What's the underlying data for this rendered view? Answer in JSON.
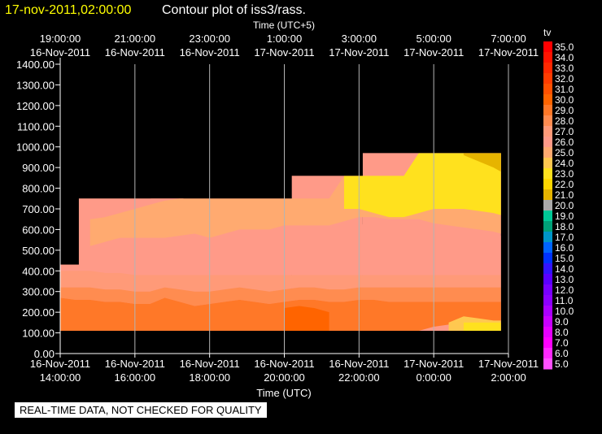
{
  "header": {
    "timestamp": "17-nov-2011,02:00:00",
    "title": "Contour plot of iss3/rass.",
    "timestamp_color": "#ffff00",
    "title_color": "#ffffff"
  },
  "footer": {
    "banner": "REAL-TIME DATA, NOT CHECKED FOR QUALITY"
  },
  "chart_data": {
    "type": "heatmap",
    "title": "Contour plot of iss3/rass.",
    "top_axis": {
      "label": "Time (UTC+5)",
      "ticks": [
        {
          "time": "19:00:00",
          "date": "16-Nov-2011"
        },
        {
          "time": "21:00:00",
          "date": "16-Nov-2011"
        },
        {
          "time": "23:00:00",
          "date": "16-Nov-2011"
        },
        {
          "time": "1:00:00",
          "date": "17-Nov-2011"
        },
        {
          "time": "3:00:00",
          "date": "17-Nov-2011"
        },
        {
          "time": "5:00:00",
          "date": "17-Nov-2011"
        },
        {
          "time": "7:00:00",
          "date": "17-Nov-2011"
        }
      ]
    },
    "bottom_axis": {
      "label": "Time (UTC)",
      "ticks": [
        {
          "time": "14:00:00",
          "date": "16-Nov-2011"
        },
        {
          "time": "16:00:00",
          "date": "16-Nov-2011"
        },
        {
          "time": "18:00:00",
          "date": "16-Nov-2011"
        },
        {
          "time": "20:00:00",
          "date": "16-Nov-2011"
        },
        {
          "time": "22:00:00",
          "date": "16-Nov-2011"
        },
        {
          "time": "0:00:00",
          "date": "17-Nov-2011"
        },
        {
          "time": "2:00:00",
          "date": "17-Nov-2011"
        }
      ]
    },
    "x_range_hours_utc": [
      14,
      26
    ],
    "y_axis": {
      "ticks": [
        "1400.00",
        "1300.00",
        "1200.00",
        "1100.00",
        "1000.00",
        "900.00",
        "800.00",
        "700.00",
        "600.00",
        "500.00",
        "400.00",
        "300.00",
        "200.00",
        "100.00",
        "0.00"
      ],
      "ylim": [
        0,
        1400
      ]
    },
    "legend": {
      "title": "tv",
      "levels": [
        "35.0",
        "34.0",
        "33.0",
        "32.0",
        "31.0",
        "30.0",
        "29.0",
        "28.0",
        "27.0",
        "26.0",
        "25.0",
        "24.0",
        "23.0",
        "22.0",
        "21.0",
        "20.0",
        "19.0",
        "18.0",
        "17.0",
        "16.0",
        "15.0",
        "14.0",
        "13.0",
        "12.0",
        "11.0",
        "10.0",
        "9.0",
        "8.0",
        "7.0",
        "6.0",
        "5.0"
      ],
      "colors": [
        "#ff0000",
        "#ff1400",
        "#ff2800",
        "#ff3c00",
        "#ff5000",
        "#ff6400",
        "#ff7828",
        "#ff8c50",
        "#ff9a78",
        "#ff9a88",
        "#ffaa70",
        "#ffc850",
        "#ffe11e",
        "#ffd700",
        "#e6b400",
        "#aaaaaa",
        "#00c896",
        "#00a078",
        "#0096c8",
        "#0064ff",
        "#0032ff",
        "#3214ff",
        "#5a00ff",
        "#7800ff",
        "#8c00ff",
        "#aa00ff",
        "#c800ff",
        "#e600ff",
        "#ff00ff",
        "#ff28ff",
        "#ff50ff"
      ]
    },
    "coverage_top_m": [
      {
        "x_hours": [
          14.0,
          14.5
        ],
        "top": 430
      },
      {
        "x_hours": [
          14.5,
          20.2
        ],
        "top": 750
      },
      {
        "x_hours": [
          20.2,
          22.1
        ],
        "top": 860
      },
      {
        "x_hours": [
          22.1,
          25.8
        ],
        "top": 970
      }
    ],
    "data_floor_m": 110,
    "bands": [
      {
        "color": "#ff9a88",
        "label": "26",
        "top": [
          430,
          750,
          750,
          750,
          750,
          750,
          750,
          760,
          760,
          720,
          700,
          700,
          680,
          650,
          650,
          650,
          650,
          640,
          620,
          600,
          620,
          640,
          640,
          650,
          650,
          650,
          640,
          620,
          600,
          580,
          570
        ],
        "bottom": [
          400,
          400,
          400,
          390,
          390,
          380,
          380,
          380,
          380,
          380,
          380,
          380,
          380,
          380,
          380,
          380,
          380,
          380,
          380,
          380,
          380,
          380,
          380,
          380,
          380,
          380,
          380,
          380,
          380,
          380,
          380
        ]
      },
      {
        "color": "#ffaa70",
        "label": "25",
        "top": [
          0,
          0,
          650,
          660,
          680,
          700,
          720,
          740,
          750,
          750,
          750,
          750,
          750,
          750,
          750,
          750,
          750,
          750,
          750,
          860,
          860,
          860,
          860,
          860,
          970,
          970,
          970,
          970,
          970,
          970,
          970
        ],
        "bottom": [
          0,
          0,
          520,
          540,
          560,
          560,
          560,
          560,
          570,
          580,
          560,
          580,
          600,
          600,
          600,
          620,
          620,
          620,
          620,
          640,
          660,
          660,
          650,
          650,
          650,
          630,
          620,
          610,
          600,
          590,
          580
        ]
      },
      {
        "color": "#ffe11e",
        "label": "23",
        "top": [
          0,
          0,
          0,
          0,
          0,
          0,
          0,
          0,
          0,
          0,
          0,
          0,
          0,
          0,
          0,
          0,
          0,
          0,
          0,
          860,
          860,
          860,
          860,
          860,
          970,
          970,
          970,
          970,
          970,
          970,
          970
        ],
        "bottom": [
          0,
          0,
          0,
          0,
          0,
          0,
          0,
          0,
          0,
          0,
          0,
          0,
          0,
          0,
          0,
          0,
          0,
          0,
          0,
          700,
          700,
          680,
          660,
          660,
          680,
          700,
          700,
          700,
          690,
          680,
          670
        ]
      },
      {
        "color": "#e6b400",
        "label": "22",
        "top": [
          0,
          0,
          0,
          0,
          0,
          0,
          0,
          0,
          0,
          0,
          0,
          0,
          0,
          0,
          0,
          0,
          0,
          0,
          0,
          0,
          0,
          0,
          0,
          0,
          0,
          0,
          0,
          970,
          970,
          970,
          970
        ],
        "bottom": [
          0,
          0,
          0,
          0,
          0,
          0,
          0,
          0,
          0,
          0,
          0,
          0,
          0,
          0,
          0,
          0,
          0,
          0,
          0,
          0,
          0,
          0,
          0,
          0,
          0,
          0,
          0,
          960,
          930,
          900,
          880
        ]
      },
      {
        "color": "#ff9a78",
        "label": "27",
        "top": [
          400,
          400,
          400,
          390,
          390,
          380,
          380,
          380,
          380,
          380,
          380,
          380,
          380,
          380,
          380,
          380,
          380,
          380,
          380,
          380,
          380,
          380,
          380,
          380,
          380,
          380,
          380,
          380,
          380,
          380,
          380
        ],
        "bottom": [
          320,
          320,
          320,
          310,
          310,
          300,
          300,
          320,
          310,
          300,
          300,
          310,
          320,
          310,
          300,
          310,
          320,
          320,
          310,
          310,
          320,
          320,
          320,
          320,
          320,
          320,
          320,
          320,
          320,
          320,
          320
        ]
      },
      {
        "color": "#ff8c50",
        "label": "28",
        "top": [
          320,
          320,
          320,
          310,
          310,
          300,
          300,
          320,
          310,
          300,
          300,
          310,
          320,
          310,
          300,
          310,
          320,
          320,
          310,
          310,
          320,
          320,
          320,
          320,
          320,
          320,
          320,
          320,
          320,
          320,
          320
        ],
        "bottom": [
          270,
          260,
          260,
          250,
          250,
          240,
          240,
          270,
          250,
          230,
          240,
          250,
          260,
          250,
          240,
          250,
          260,
          260,
          250,
          250,
          260,
          260,
          250,
          250,
          250,
          250,
          250,
          250,
          250,
          250,
          250
        ]
      },
      {
        "color": "#ff7828",
        "label": "29",
        "top": [
          270,
          260,
          260,
          250,
          250,
          240,
          240,
          270,
          250,
          230,
          240,
          250,
          260,
          250,
          240,
          250,
          260,
          260,
          250,
          250,
          260,
          260,
          250,
          250,
          250,
          250,
          250,
          250,
          250,
          250,
          250
        ],
        "bottom": [
          110,
          110,
          110,
          110,
          110,
          110,
          110,
          110,
          110,
          110,
          110,
          110,
          110,
          110,
          110,
          110,
          110,
          110,
          110,
          110,
          110,
          110,
          110,
          110,
          110,
          130,
          140,
          140,
          140,
          140,
          140
        ]
      },
      {
        "color": "#ff6400",
        "label": "30",
        "top": [
          0,
          0,
          0,
          0,
          0,
          0,
          0,
          0,
          0,
          0,
          0,
          0,
          0,
          0,
          0,
          220,
          230,
          220,
          200,
          0,
          0,
          0,
          0,
          0,
          0,
          0,
          0,
          0,
          0,
          0,
          0
        ],
        "bottom": [
          0,
          0,
          0,
          0,
          0,
          0,
          0,
          0,
          0,
          0,
          0,
          0,
          0,
          0,
          0,
          110,
          110,
          110,
          110,
          0,
          0,
          0,
          0,
          0,
          0,
          0,
          0,
          0,
          0,
          0,
          0
        ]
      },
      {
        "color": "#ffc850",
        "label": "24",
        "top": [
          0,
          0,
          0,
          0,
          0,
          0,
          0,
          0,
          0,
          0,
          0,
          0,
          0,
          0,
          0,
          0,
          0,
          0,
          0,
          0,
          0,
          0,
          0,
          0,
          0,
          0,
          150,
          180,
          170,
          160,
          160
        ],
        "bottom": [
          0,
          0,
          0,
          0,
          0,
          0,
          0,
          0,
          0,
          0,
          0,
          0,
          0,
          0,
          0,
          0,
          0,
          0,
          0,
          0,
          0,
          0,
          0,
          0,
          0,
          0,
          110,
          110,
          110,
          110,
          110
        ]
      },
      {
        "color": "#ffe11e",
        "label": "23",
        "top": [
          0,
          0,
          0,
          0,
          0,
          0,
          0,
          0,
          0,
          0,
          0,
          0,
          0,
          0,
          0,
          0,
          0,
          0,
          0,
          0,
          0,
          0,
          0,
          0,
          0,
          0,
          0,
          150,
          150,
          150,
          150
        ],
        "bottom": [
          0,
          0,
          0,
          0,
          0,
          0,
          0,
          0,
          0,
          0,
          0,
          0,
          0,
          0,
          0,
          0,
          0,
          0,
          0,
          0,
          0,
          0,
          0,
          0,
          0,
          0,
          0,
          110,
          110,
          110,
          110
        ]
      }
    ],
    "band_x_hours": [
      14.0,
      14.4,
      14.8,
      15.2,
      15.6,
      16.0,
      16.4,
      16.8,
      17.2,
      17.6,
      18.0,
      18.4,
      18.8,
      19.2,
      19.6,
      20.0,
      20.4,
      20.8,
      21.2,
      21.6,
      22.0,
      22.4,
      22.8,
      23.2,
      23.6,
      24.0,
      24.4,
      24.8,
      25.2,
      25.6,
      25.8
    ]
  }
}
